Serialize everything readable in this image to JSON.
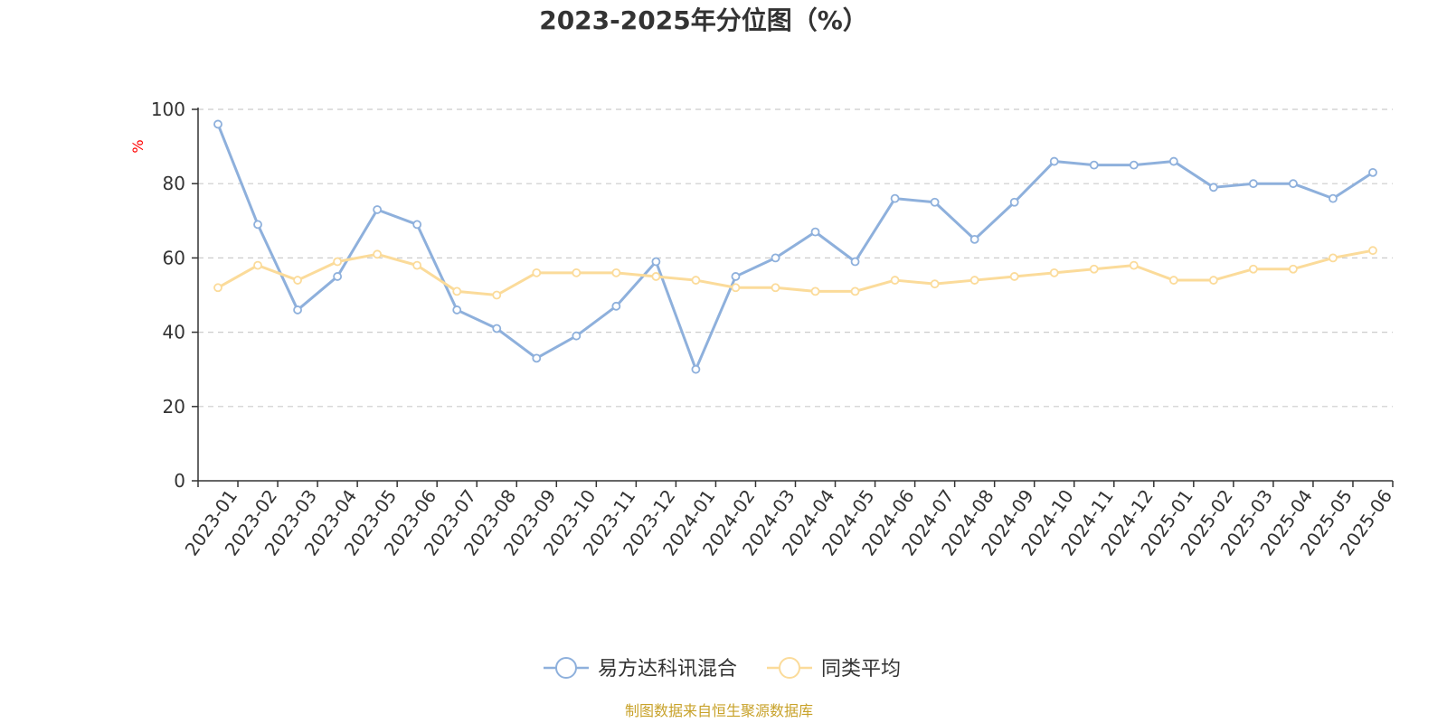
{
  "colors": {
    "series1": "#8eb0dc",
    "series2": "#fbdb9a",
    "axis": "#333333",
    "grid": "#cccccc",
    "unit": "#ff0000",
    "source": "#c8a22a"
  },
  "source_text": "制图数据来自恒生聚源数据库",
  "chart_data": {
    "type": "line",
    "title": "2023-2025年分位图（%）",
    "ylabel": "%",
    "xlabel": "",
    "ylim": [
      0,
      100
    ],
    "yticks": [
      0,
      20,
      40,
      60,
      80,
      100
    ],
    "grid": true,
    "legend_position": "bottom-center",
    "categories": [
      "2023-01",
      "2023-02",
      "2023-03",
      "2023-04",
      "2023-05",
      "2023-06",
      "2023-07",
      "2023-08",
      "2023-09",
      "2023-10",
      "2023-11",
      "2023-12",
      "2024-01",
      "2024-02",
      "2024-03",
      "2024-04",
      "2024-05",
      "2024-06",
      "2024-07",
      "2024-08",
      "2024-09",
      "2024-10",
      "2024-11",
      "2024-12",
      "2025-01",
      "2025-02",
      "2025-03",
      "2025-04",
      "2025-05",
      "2025-06"
    ],
    "series": [
      {
        "name": "易方达科讯混合",
        "values": [
          96,
          69,
          46,
          55,
          73,
          69,
          46,
          41,
          33,
          39,
          47,
          59,
          30,
          55,
          60,
          67,
          59,
          76,
          75,
          65,
          75,
          86,
          85,
          85,
          86,
          79,
          80,
          80,
          76,
          83
        ]
      },
      {
        "name": "同类平均",
        "values": [
          52,
          58,
          54,
          59,
          61,
          58,
          51,
          50,
          56,
          56,
          56,
          55,
          54,
          52,
          52,
          51,
          51,
          54,
          53,
          54,
          55,
          56,
          57,
          58,
          54,
          54,
          57,
          57,
          60,
          62
        ]
      }
    ]
  }
}
